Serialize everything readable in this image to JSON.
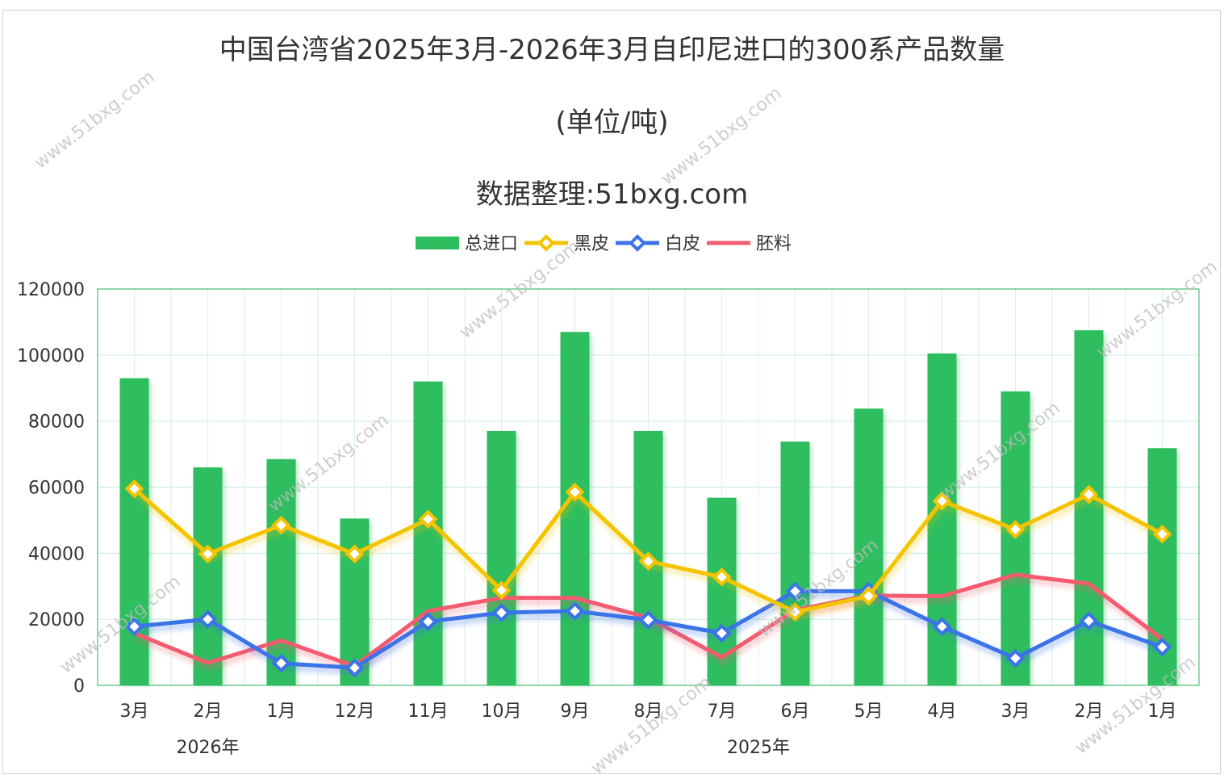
{
  "title": "中国台湾省2025年3月-2026年3月自印尼进口的300系产品数量",
  "subtitle": "(单位/吨)",
  "source": "数据整理:51bxg.com",
  "watermark": "www.51bxg.com",
  "chart_data": {
    "type": "bar",
    "categories": [
      "3月",
      "2月",
      "1月",
      "12月",
      "11月",
      "10月",
      "9月",
      "8月",
      "7月",
      "6月",
      "5月",
      "4月",
      "3月",
      "2月",
      "1月"
    ],
    "year_groups": [
      {
        "label": "2026年",
        "first": 0,
        "last": 2
      },
      {
        "label": "2025年",
        "first": 3,
        "last": 14
      }
    ],
    "ylim": [
      0,
      120000
    ],
    "yticks": [
      0,
      20000,
      40000,
      60000,
      80000,
      100000,
      120000
    ],
    "grid": true,
    "legend_position": "top-center",
    "series": [
      {
        "name": "总进口",
        "kind": "bar",
        "color": "#2ebd5f",
        "values": [
          93000,
          66000,
          68500,
          50500,
          92000,
          77000,
          107000,
          77000,
          56800,
          73800,
          83800,
          100500,
          89000,
          107500,
          71800
        ]
      },
      {
        "name": "黑皮",
        "kind": "line",
        "marker": "diamond",
        "color": "#f5c400",
        "values": [
          59500,
          39800,
          48500,
          39800,
          50300,
          28800,
          58500,
          37600,
          32800,
          22200,
          27000,
          55800,
          47200,
          57800,
          45800
        ]
      },
      {
        "name": "白皮",
        "kind": "line",
        "marker": "diamond",
        "color": "#3b73e8",
        "values": [
          17800,
          20000,
          6700,
          5300,
          19300,
          22000,
          22500,
          19800,
          15800,
          28500,
          28500,
          17800,
          8200,
          19500,
          11600
        ]
      },
      {
        "name": "胚料",
        "kind": "line",
        "marker": "none",
        "color": "#f25c6e",
        "values": [
          15800,
          6800,
          13600,
          5800,
          22500,
          26500,
          26500,
          20500,
          8500,
          22800,
          27200,
          27000,
          33500,
          30800,
          14000
        ]
      }
    ]
  }
}
